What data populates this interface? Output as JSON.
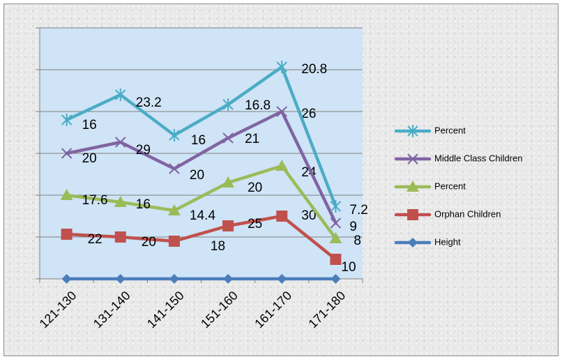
{
  "chart_data": {
    "type": "line",
    "title": "",
    "xlabel": "",
    "ylabel": "",
    "categories": [
      "121-130",
      "131-140",
      "141-150",
      "151-160",
      "161-170",
      "171-180"
    ],
    "ylim": [
      0,
      9
    ],
    "grid": true,
    "legend_position": "right",
    "series": [
      {
        "name": "Height",
        "marker": "diamond",
        "color": "#4a7ebb",
        "values": [
          0,
          0,
          0,
          0,
          0,
          0
        ],
        "labels": [
          "",
          "",
          "",
          "",
          "",
          ""
        ]
      },
      {
        "name": "Orphan Children",
        "marker": "square",
        "color": "#c0504d",
        "values": [
          1.6,
          1.5,
          1.35,
          1.9,
          2.25,
          0.7
        ],
        "labels": [
          "22",
          "20",
          "18",
          "25",
          "30",
          "10"
        ]
      },
      {
        "name": "Percent",
        "marker": "triangle",
        "color": "#9bbb59",
        "values": [
          3.0,
          2.75,
          2.45,
          3.45,
          4.05,
          1.45
        ],
        "labels": [
          "17.6",
          "16",
          "14.4",
          "20",
          "24",
          "8"
        ]
      },
      {
        "name": "Middle Class Children",
        "marker": "x",
        "color": "#8064a2",
        "values": [
          4.5,
          4.9,
          3.95,
          5.05,
          6.0,
          2.0
        ],
        "labels": [
          "20",
          "29",
          "20",
          "21",
          "26",
          "9"
        ]
      },
      {
        "name": "Percent",
        "marker": "star",
        "color": "#4bacc6",
        "values": [
          5.7,
          6.6,
          5.15,
          6.25,
          7.6,
          2.6
        ],
        "labels": [
          "16",
          "23.2",
          "16",
          "16.8",
          "20.8",
          "7.2"
        ]
      }
    ]
  },
  "legend": [
    "Percent",
    "Middle Class Children",
    "Percent",
    "Orphan Children",
    "Height"
  ]
}
